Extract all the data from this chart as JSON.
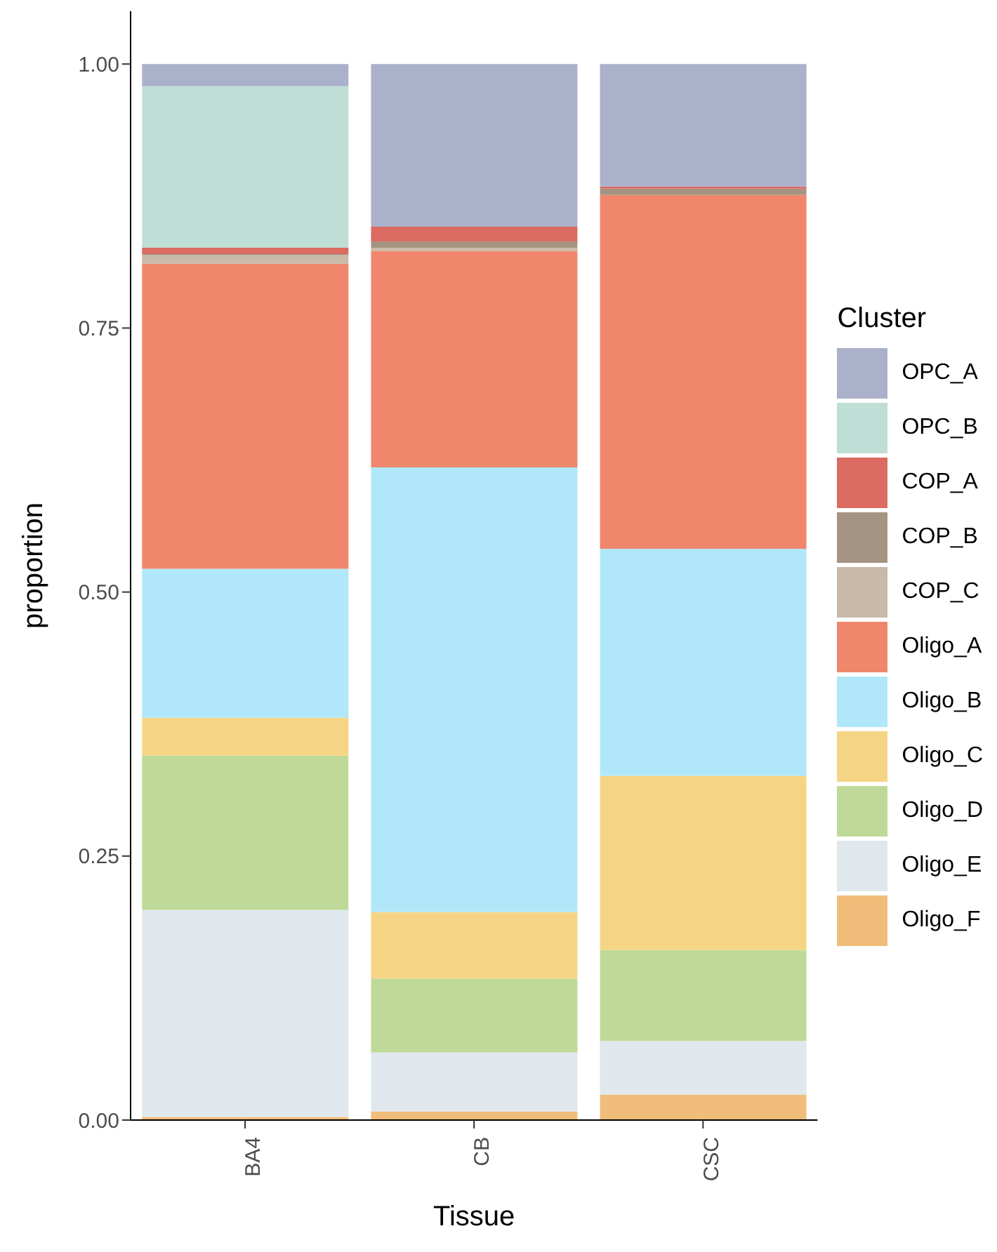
{
  "chart_data": {
    "type": "bar",
    "stacked": true,
    "xlabel": "Tissue",
    "ylabel": "proportion",
    "legend_title": "Cluster",
    "legend": "right",
    "grid": false,
    "categories": [
      "BA4",
      "CB",
      "CSC"
    ],
    "ylim": [
      0,
      1.05
    ],
    "yticks": [
      {
        "value": 0,
        "label": "0.00"
      },
      {
        "value": 0.25,
        "label": "0.25"
      },
      {
        "value": 0.5,
        "label": "0.50"
      },
      {
        "value": 0.75,
        "label": "0.75"
      },
      {
        "value": 1,
        "label": "1.00"
      }
    ],
    "series": [
      {
        "name": "Oligo_F",
        "color": "#f0bd7a",
        "values": [
          0.003,
          0.008,
          0.024
        ]
      },
      {
        "name": "Oligo_E",
        "color": "#e0e8ee",
        "values": [
          0.196,
          0.056,
          0.051
        ]
      },
      {
        "name": "Oligo_D",
        "color": "#bfda98",
        "values": [
          0.146,
          0.07,
          0.086
        ]
      },
      {
        "name": "Oligo_C",
        "color": "#f5d585",
        "values": [
          0.036,
          0.063,
          0.165
        ]
      },
      {
        "name": "Oligo_B",
        "color": "#b0e8f9",
        "values": [
          0.141,
          0.421,
          0.215
        ]
      },
      {
        "name": "Oligo_A",
        "color": "#f0876c",
        "values": [
          0.289,
          0.205,
          0.335
        ]
      },
      {
        "name": "COP_C",
        "color": "#c9b9a8",
        "values": [
          0.008,
          0.003,
          null
        ]
      },
      {
        "name": "COP_B",
        "color": "#a59482",
        "values": [
          0.001,
          0.006,
          0.006
        ]
      },
      {
        "name": "COP_A",
        "color": "#dc6b61",
        "values": [
          0.006,
          0.014,
          0.002
        ]
      },
      {
        "name": "OPC_B",
        "color": "#bfded5",
        "values": [
          0.153,
          null,
          null
        ]
      },
      {
        "name": "OPC_A",
        "color": "#abb1cb",
        "values": [
          0.021,
          0.154,
          0.116
        ]
      }
    ]
  }
}
